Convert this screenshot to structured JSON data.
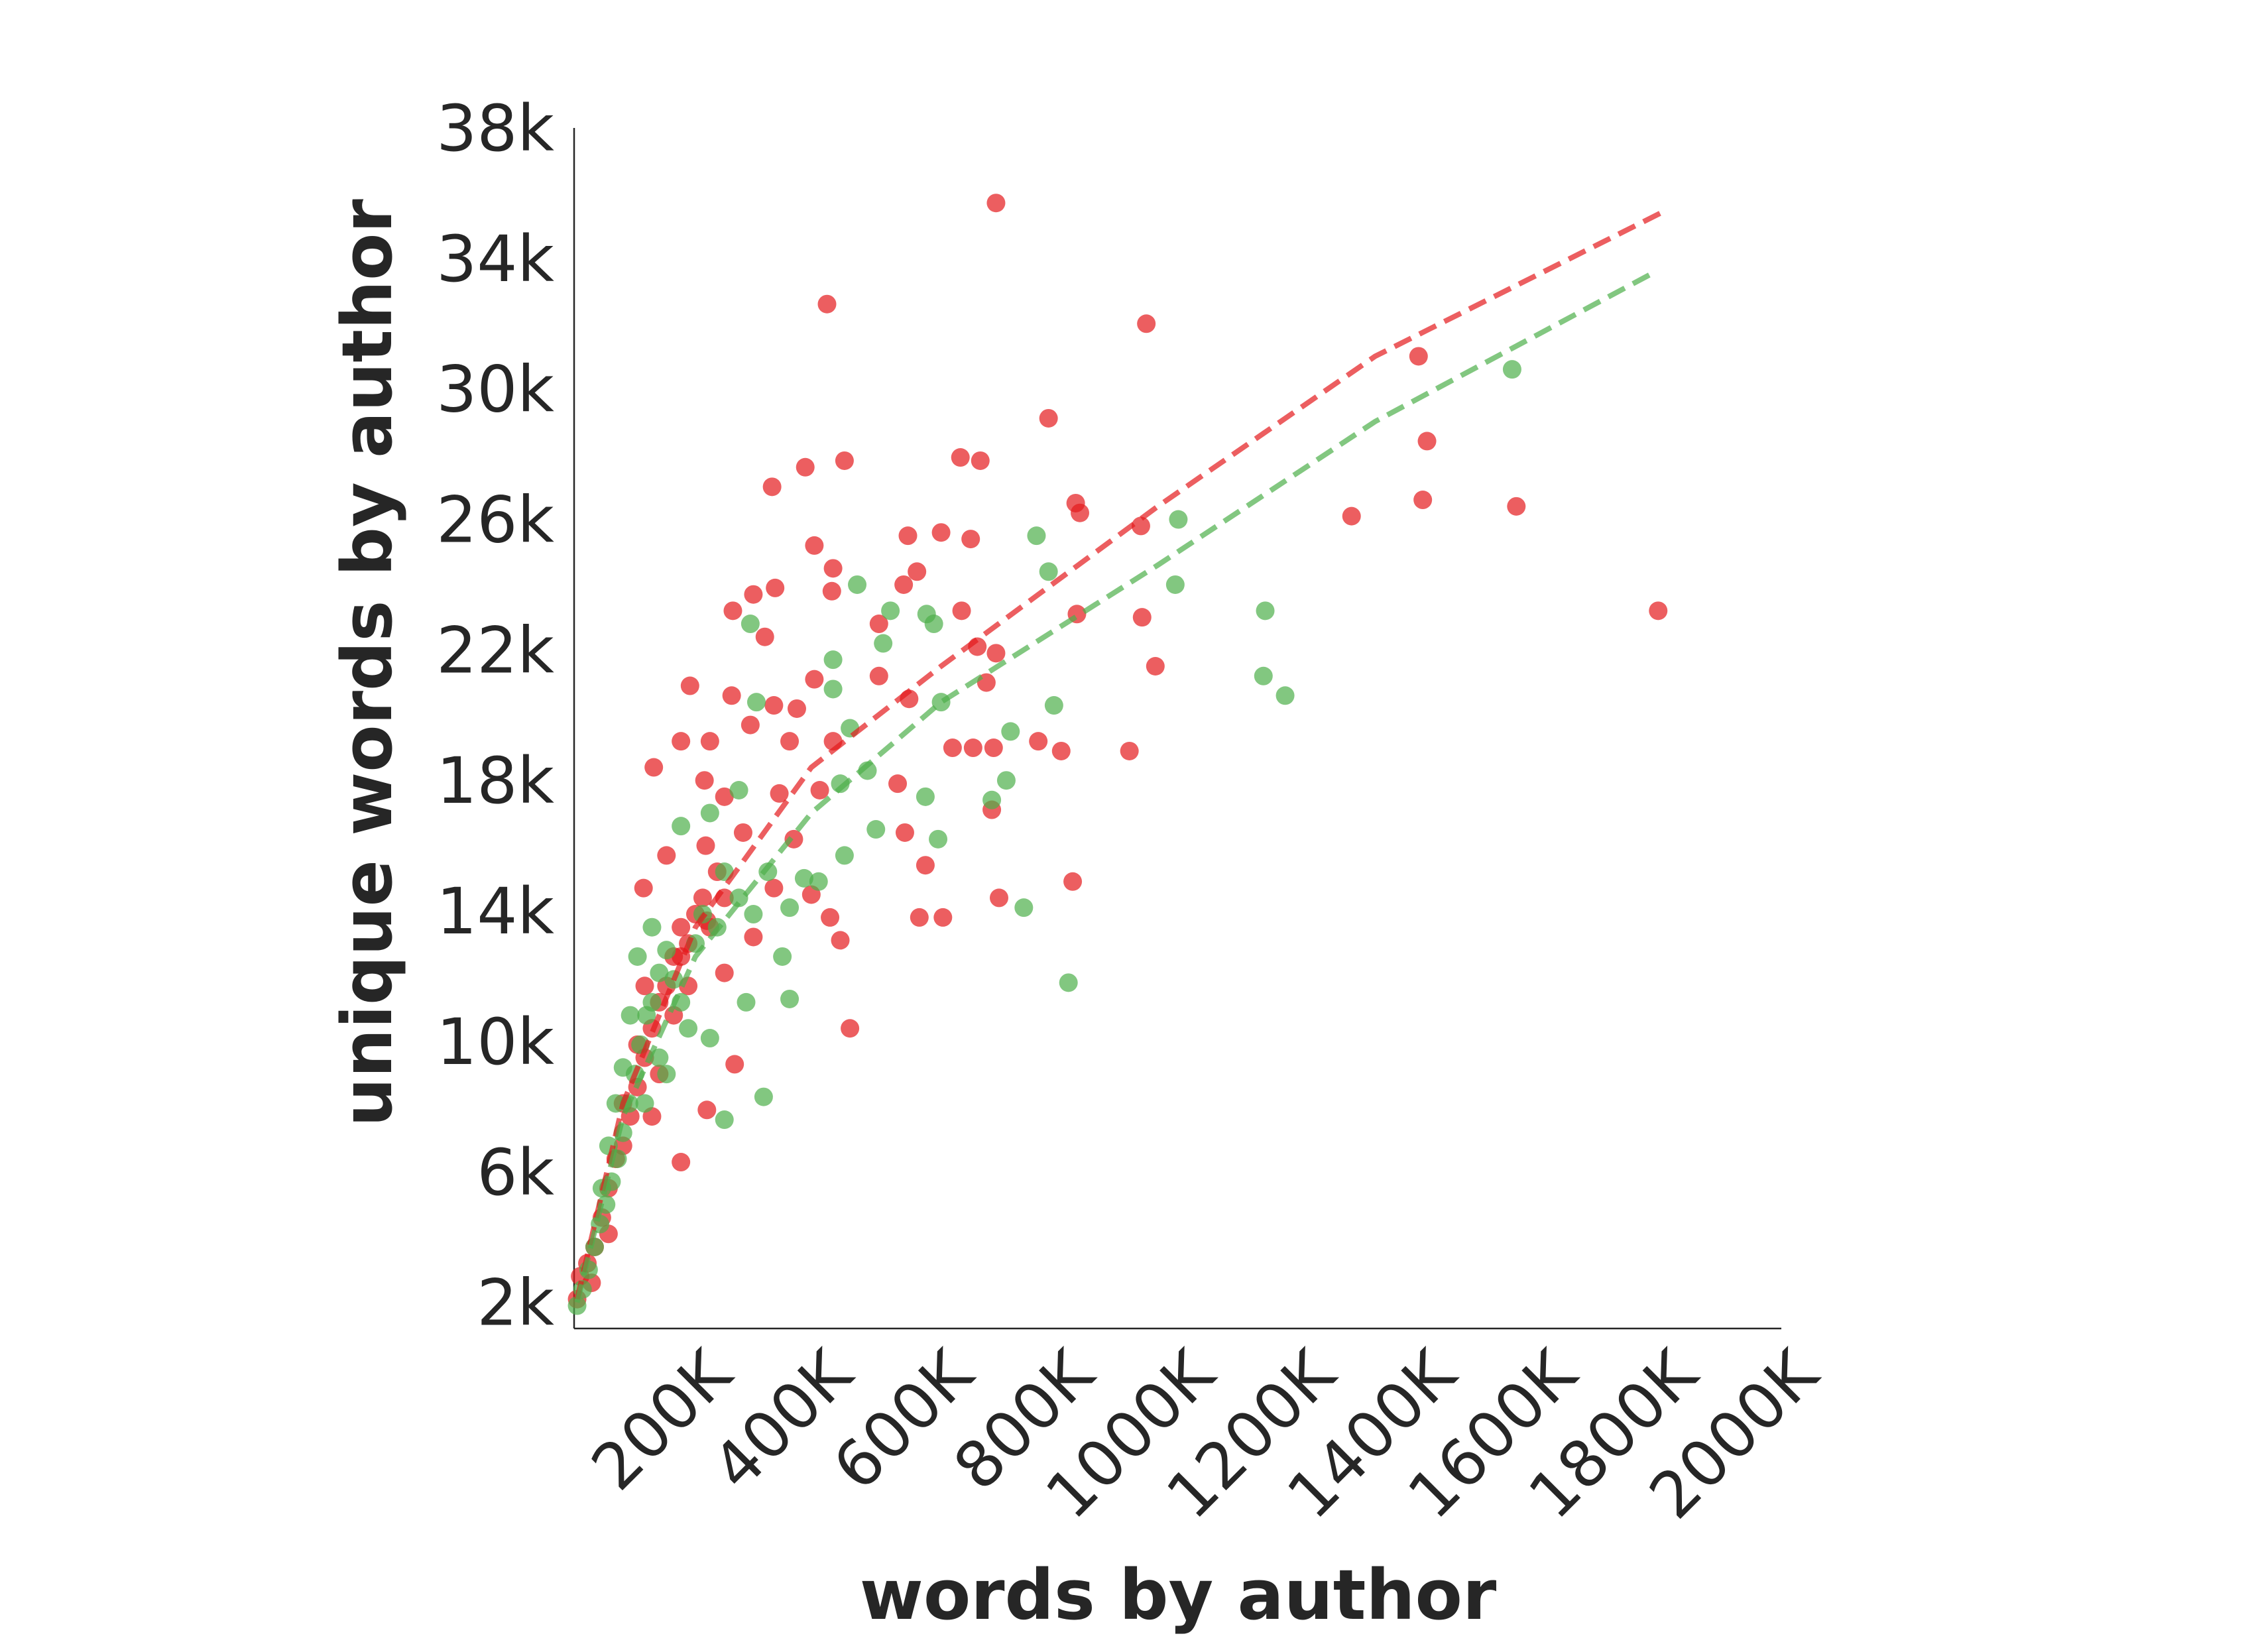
{
  "chart_data": {
    "type": "scatter",
    "x_label": "words by author",
    "y_label": "unique words by author",
    "xlim": [
      0,
      2000000
    ],
    "ylim": [
      1200,
      38000
    ],
    "xticks": [
      {
        "value": 200000,
        "label": "200K"
      },
      {
        "value": 400000,
        "label": "400K"
      },
      {
        "value": 600000,
        "label": "600K"
      },
      {
        "value": 800000,
        "label": "800K"
      },
      {
        "value": 1000000,
        "label": "1000K"
      },
      {
        "value": 1200000,
        "label": "1200K"
      },
      {
        "value": 1400000,
        "label": "1400K"
      },
      {
        "value": 1600000,
        "label": "1600K"
      },
      {
        "value": 1800000,
        "label": "1800K"
      },
      {
        "value": 2000000,
        "label": "2000K"
      }
    ],
    "yticks": [
      {
        "value": 2000,
        "label": "2k"
      },
      {
        "value": 6000,
        "label": "6k"
      },
      {
        "value": 10000,
        "label": "10k"
      },
      {
        "value": 14000,
        "label": "14k"
      },
      {
        "value": 18000,
        "label": "18k"
      },
      {
        "value": 22000,
        "label": "22k"
      },
      {
        "value": 26000,
        "label": "26k"
      },
      {
        "value": 30000,
        "label": "30k"
      },
      {
        "value": 34000,
        "label": "34k"
      },
      {
        "value": 38000,
        "label": "38k"
      }
    ],
    "grid": false,
    "series": [
      {
        "color": "#e41a1c",
        "x": [
          699000,
          419000,
          948000,
          1399000,
          1413000,
          786000,
          640000,
          673000,
          448000,
          383000,
          328000,
          831000,
          838000,
          1288000,
          1406000,
          1561000,
          939000,
          1796000,
          553000,
          608000,
          657000,
          398000,
          429000,
          427000,
          333000,
          297000,
          263000,
          316000,
          505000,
          546000,
          568000,
          642000,
          941000,
          833000,
          668000,
          699000,
          963000,
          683000,
          505000,
          555000,
          398000,
          192000,
          261000,
          331000,
          369000,
          177000,
          225000,
          292000,
          357000,
          429000,
          627000,
          661000,
          695000,
          769000,
          807000,
          920000,
          132000,
          216000,
          249000,
          340000,
          407000,
          536000,
          692000,
          218000,
          280000,
          364000,
          548000,
          153000,
          582000,
          331000,
          393000,
          704000,
          826000,
          115000,
          424000,
          572000,
          611000,
          297000,
          441000,
          220000,
          177000,
          249000,
          457000,
          266000,
          220000,
          177000,
          129000,
          10000,
          22000,
          34000,
          46000,
          57000,
          69000,
          81000,
          93000,
          105000,
          117000,
          129000,
          141000,
          153000,
          165000,
          177000,
          189000,
          201000,
          213000,
          225000,
          237000,
          249000,
          81000,
          105000,
          57000,
          141000,
          165000,
          189000,
          117000,
          5000,
          29000
        ],
        "values": [
          35700,
          32600,
          32000,
          31000,
          28400,
          29100,
          27900,
          27800,
          27800,
          27600,
          27000,
          26500,
          26200,
          26100,
          26600,
          26400,
          25800,
          23200,
          25500,
          25600,
          25400,
          25200,
          24500,
          23800,
          23900,
          23700,
          23200,
          22400,
          22800,
          24000,
          24400,
          23200,
          23000,
          23100,
          22100,
          21900,
          21500,
          21000,
          21200,
          20500,
          21100,
          20900,
          20600,
          20300,
          20200,
          19200,
          19200,
          19700,
          19200,
          19200,
          19000,
          19000,
          19000,
          19200,
          18900,
          18900,
          18400,
          18000,
          17500,
          17600,
          17700,
          17900,
          17100,
          16000,
          16400,
          16200,
          16400,
          15700,
          15400,
          14700,
          14500,
          14400,
          14900,
          14700,
          13800,
          13800,
          13800,
          13200,
          13100,
          13700,
          12600,
          12100,
          10400,
          9300,
          7900,
          6300,
          7700,
          2800,
          3200,
          3700,
          4600,
          5500,
          6400,
          6800,
          7700,
          8600,
          9500,
          10400,
          11200,
          11700,
          12600,
          13500,
          13000,
          13900,
          14400,
          13500,
          15200,
          14400,
          8100,
          9900,
          4100,
          9000,
          10800,
          11700,
          11700,
          2100,
          2600
        ],
        "trend": {
          "x": [
            5000,
            81000,
            201000,
            393000,
            608000,
            967000,
            1327000,
            1801000
          ],
          "values": [
            2100,
            8100,
            13500,
            18400,
            21500,
            26400,
            31000,
            35400
          ]
        }
      },
      {
        "color": "#4daf4a",
        "x": [
          1554000,
          1001000,
          766000,
          786000,
          996000,
          469000,
          1145000,
          1142000,
          1178000,
          524000,
          584000,
          596000,
          292000,
          512000,
          429000,
          429000,
          302000,
          608000,
          795000,
          723000,
          457000,
          716000,
          692000,
          582000,
          486000,
          441000,
          500000,
          603000,
          745000,
          819000,
          357000,
          314000,
          249000,
          448000,
          405000,
          345000,
          297000,
          273000,
          249000,
          177000,
          225000,
          273000,
          321000,
          357000,
          381000,
          285000,
          225000,
          5000,
          14000,
          24000,
          34000,
          43000,
          53000,
          62000,
          72000,
          81000,
          91000,
          101000,
          110000,
          120000,
          129000,
          141000,
          153000,
          165000,
          177000,
          189000,
          201000,
          213000,
          105000,
          93000,
          69000,
          57000,
          117000,
          141000,
          46000,
          153000,
          81000,
          129000,
          237000
        ],
        "values": [
          30600,
          26000,
          25500,
          24400,
          24000,
          24000,
          23200,
          21200,
          20600,
          23200,
          23100,
          22800,
          22800,
          22200,
          21700,
          20800,
          20400,
          20400,
          20300,
          19500,
          19600,
          18000,
          17400,
          17500,
          18300,
          17900,
          16500,
          16200,
          14100,
          11800,
          11300,
          8300,
          7600,
          15700,
          14900,
          12600,
          13900,
          14400,
          15200,
          16600,
          17000,
          17700,
          15200,
          14100,
          15000,
          11200,
          10100,
          1900,
          2400,
          3000,
          3700,
          4400,
          5000,
          5700,
          6400,
          7200,
          8100,
          9000,
          9900,
          10800,
          11200,
          12100,
          12800,
          11900,
          11200,
          10400,
          13000,
          13900,
          12600,
          10800,
          8100,
          6800,
          8100,
          9500,
          5500,
          9000,
          9200,
          13500,
          13500
        ],
        "trend": {
          "x": [
            5000,
            81000,
            201000,
            393000,
            608000,
            967000,
            1327000,
            1782000
          ],
          "values": [
            2000,
            7700,
            12600,
            17000,
            20400,
            24600,
            29000,
            33500
          ]
        }
      }
    ]
  }
}
